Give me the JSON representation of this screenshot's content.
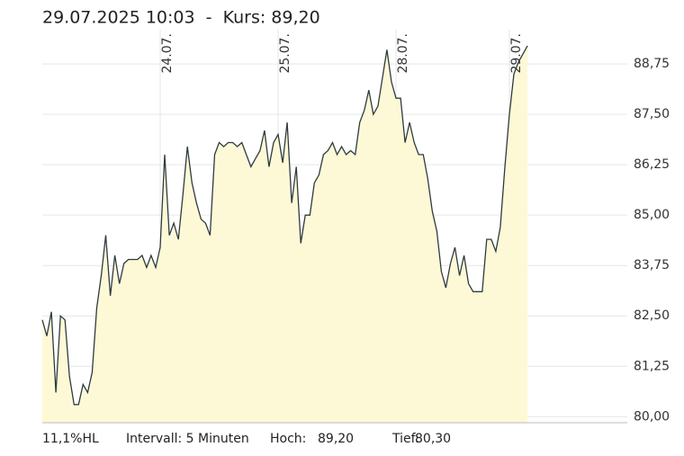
{
  "chart_data": {
    "type": "area",
    "title": "29.07.2025 10:03  -  Kurs: 89,20",
    "footer": {
      "range": "11,1%HL",
      "interval": "Intervall: 5 Minuten",
      "high_label": "Hoch:",
      "high": "89,20",
      "low_label": "Tief:",
      "low": "80,30"
    },
    "x": [
      0,
      1,
      2,
      3,
      4,
      5,
      6,
      7,
      8,
      9,
      10,
      11,
      12,
      13,
      14,
      15,
      16,
      17,
      18,
      19,
      20,
      21,
      22,
      23,
      24,
      25,
      26,
      27,
      28,
      29,
      30,
      31,
      32,
      33,
      34,
      35,
      36,
      37,
      38,
      39,
      40,
      41,
      42,
      43,
      44,
      45,
      46,
      47,
      48,
      49,
      50,
      51,
      52,
      53,
      54,
      55,
      56,
      57,
      58,
      59,
      60,
      61,
      62,
      63,
      64,
      65,
      66,
      67,
      68,
      69,
      70,
      71,
      72,
      73,
      74,
      75,
      76,
      77,
      78,
      79,
      80,
      81,
      82,
      83,
      84,
      85,
      86,
      87,
      88,
      89,
      90,
      91,
      92,
      93,
      94,
      95,
      96,
      97,
      98,
      99,
      100,
      101,
      102,
      103,
      104,
      105,
      106,
      107
    ],
    "values": [
      82.4,
      82.0,
      82.6,
      80.6,
      82.5,
      82.4,
      81.0,
      80.3,
      80.3,
      80.8,
      80.6,
      81.1,
      82.7,
      83.5,
      84.5,
      83.0,
      84.0,
      83.3,
      83.8,
      83.9,
      83.9,
      83.9,
      84.0,
      83.7,
      84.0,
      83.7,
      84.2,
      86.5,
      84.5,
      84.8,
      84.4,
      85.5,
      86.7,
      85.8,
      85.3,
      84.9,
      84.8,
      84.5,
      86.5,
      86.8,
      86.7,
      86.8,
      86.8,
      86.7,
      86.8,
      86.5,
      86.2,
      86.4,
      86.6,
      87.1,
      86.2,
      86.8,
      87.0,
      86.3,
      87.3,
      85.3,
      86.2,
      84.3,
      85.0,
      85.0,
      85.8,
      86.0,
      86.5,
      86.6,
      86.8,
      86.5,
      86.7,
      86.5,
      86.6,
      86.5,
      87.3,
      87.6,
      88.1,
      87.5,
      87.7,
      88.4,
      89.1,
      88.3,
      87.9,
      87.9,
      86.8,
      87.3,
      86.8,
      86.5,
      86.5,
      85.9,
      85.1,
      84.6,
      83.6,
      83.2,
      83.8,
      84.2,
      83.5,
      84.0,
      83.3,
      83.1,
      83.1,
      83.1,
      84.4,
      84.4,
      84.1,
      84.7,
      86.2,
      87.5,
      88.5,
      88.8,
      89.0,
      89.2
    ],
    "color": "#2e3b40",
    "fill": "#fdf9d6",
    "xlim": [
      0,
      129
    ],
    "xticks": [
      {
        "value": 26,
        "label": "24.07."
      },
      {
        "value": 52,
        "label": "25.07."
      },
      {
        "value": 78,
        "label": "28.07."
      },
      {
        "value": 103,
        "label": "29.07."
      }
    ],
    "ylim": [
      79.85,
      89.6
    ],
    "yticks": [
      {
        "value": 80,
        "label": "80,00"
      },
      {
        "value": 81.25,
        "label": "81,25"
      },
      {
        "value": 82.5,
        "label": "82,50"
      },
      {
        "value": 83.75,
        "label": "83,75"
      },
      {
        "value": 85,
        "label": "85,00"
      },
      {
        "value": 86.25,
        "label": "86,25"
      },
      {
        "value": 87.5,
        "label": "87,50"
      },
      {
        "value": 88.75,
        "label": "88,75"
      }
    ],
    "grid": true
  }
}
